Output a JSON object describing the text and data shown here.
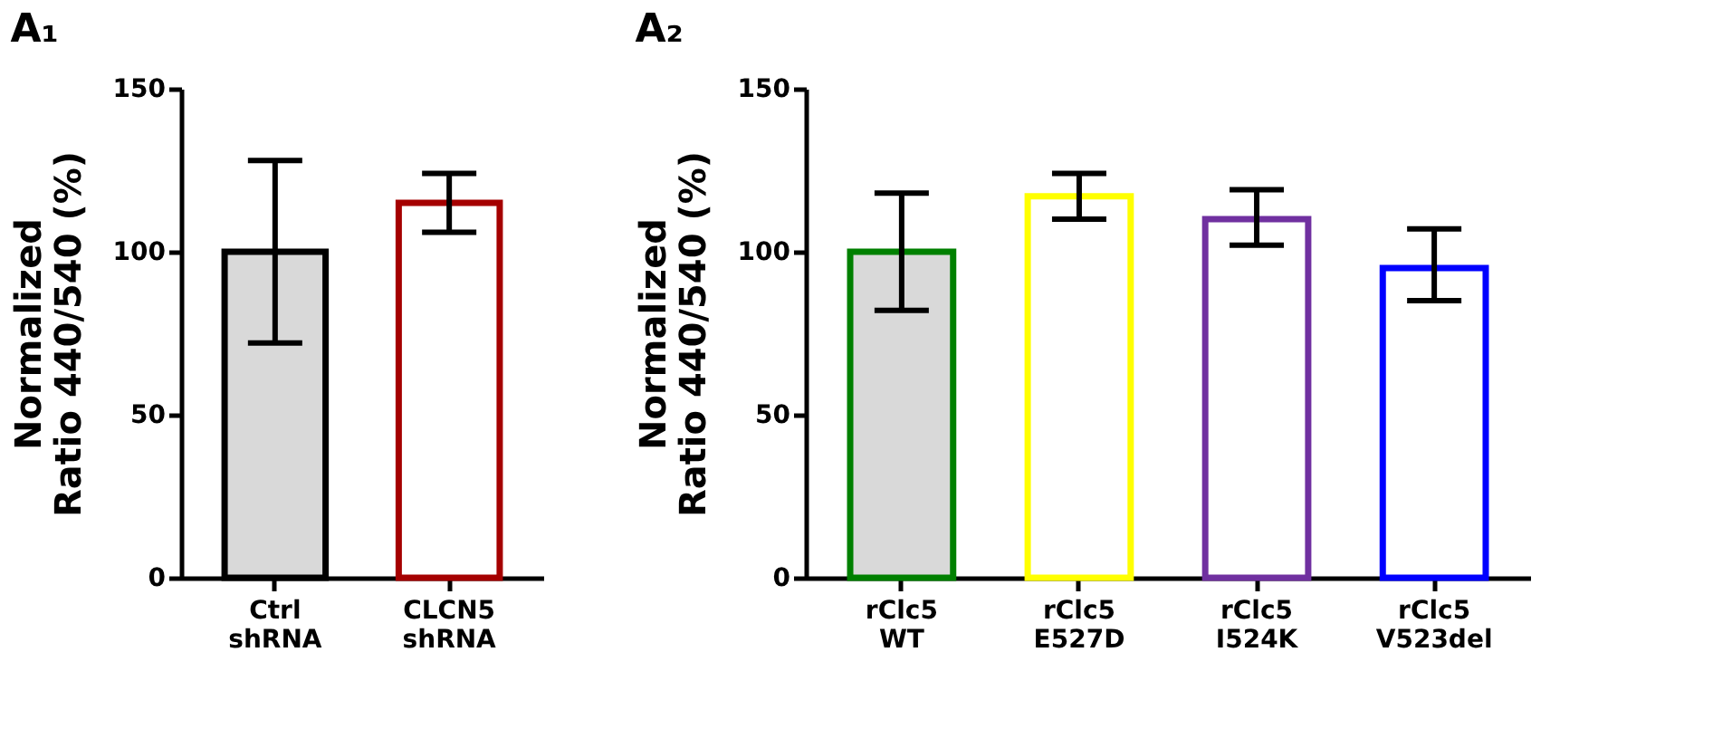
{
  "chart_data": [
    {
      "type": "bar",
      "title": "A₁",
      "ylabel": "Normalized\nRatio 440/540 (%)",
      "categories": [
        "Ctrl\nshRNA",
        "CLCN5\nshRNA"
      ],
      "values": [
        100,
        115
      ],
      "errors": [
        [
          72,
          128
        ],
        [
          106,
          124
        ]
      ],
      "colors": [
        "#000000",
        "#a50000"
      ],
      "ylim": [
        0,
        150
      ],
      "yticks": [
        0,
        50,
        100,
        150
      ],
      "grid": false,
      "legend": false
    },
    {
      "type": "bar",
      "title": "A₂",
      "ylabel": "Normalized\nRatio 440/540 (%)",
      "categories": [
        "rClc5\nWT",
        "rClc5\nE527D",
        "rClc5\nI524K",
        "rClc5\nV523del"
      ],
      "values": [
        100,
        117,
        110,
        95
      ],
      "errors": [
        [
          82,
          118
        ],
        [
          110,
          124
        ],
        [
          102,
          119
        ],
        [
          85,
          107
        ]
      ],
      "colors": [
        "#008000",
        "#ffff00",
        "#7030a0",
        "#0000ff"
      ],
      "ylim": [
        0,
        150
      ],
      "yticks": [
        0,
        50,
        100,
        150
      ],
      "grid": false,
      "legend": false
    }
  ]
}
